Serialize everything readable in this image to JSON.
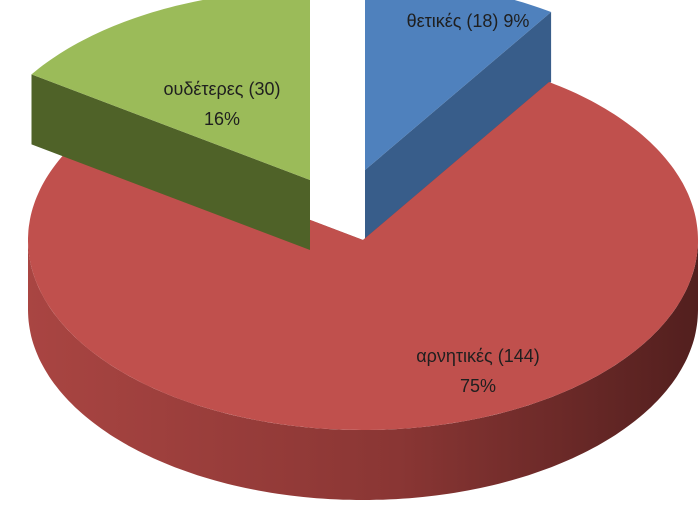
{
  "chart_data": {
    "type": "pie",
    "categories": [
      "θετικές",
      "αρνητικές",
      "ουδέτερες"
    ],
    "values": [
      18,
      144,
      30
    ],
    "value_labels": [
      [
        "θετικές (18) 9%"
      ],
      [
        "αρνητικές (144)",
        "75%"
      ],
      [
        "ουδέτερες (30)",
        "16%"
      ]
    ],
    "colors": [
      "#4f81bd",
      "#c0504d",
      "#9bbb59"
    ],
    "side_colors": [
      "#385d8a",
      "#7d302e",
      "#4f6228"
    ]
  }
}
